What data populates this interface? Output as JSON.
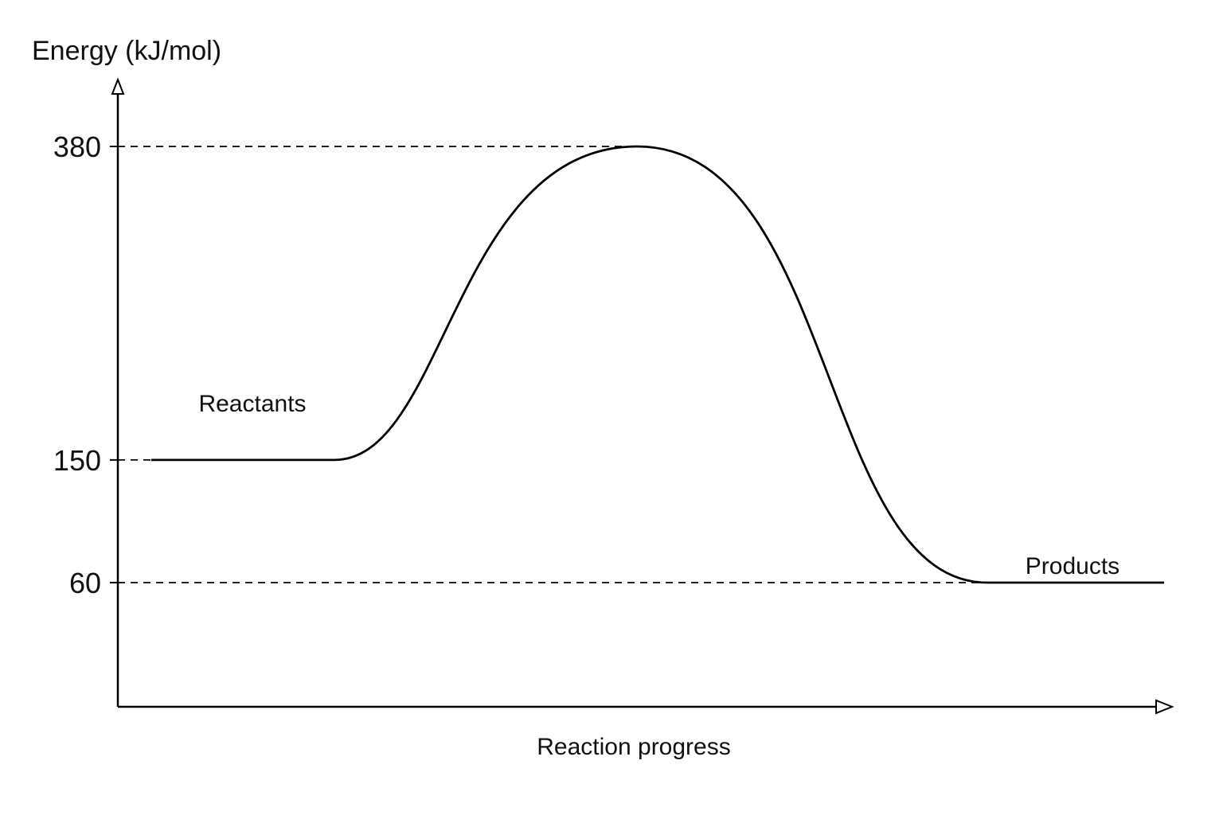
{
  "chart_data": {
    "type": "line",
    "title": "",
    "ylabel": "Energy (kJ/mol)",
    "xlabel": "Reaction progress",
    "ylim": [
      -22,
      430
    ],
    "yticks": [
      60,
      150,
      380
    ],
    "ytick_labels": [
      "60",
      "150",
      "380"
    ],
    "grid": false,
    "legend": "none",
    "reference_lines": [
      {
        "value": 380,
        "style": "dashed",
        "extent": "axis-to-peak"
      },
      {
        "value": 150,
        "style": "dashed",
        "extent": "axis-to-curve-start"
      },
      {
        "value": 60,
        "style": "dashed",
        "extent": "axis-to-products"
      }
    ],
    "series": [
      {
        "reactants_level": 150,
        "transition_state": 380,
        "products_level": 60
      }
    ],
    "annotations": [
      {
        "text": "Reactants",
        "anchor": "reactants"
      },
      {
        "text": "Products",
        "anchor": "products"
      }
    ],
    "colors": {
      "line": "#000000",
      "text": "#111111",
      "background": "#ffffff"
    }
  }
}
